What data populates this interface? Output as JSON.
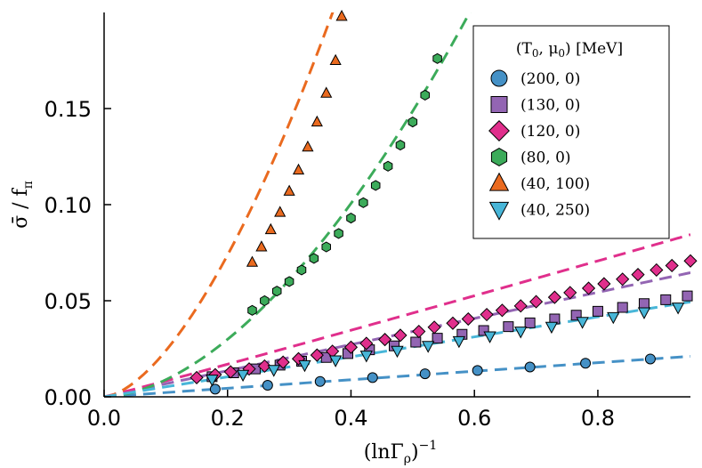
{
  "chart_data": {
    "type": "scatter",
    "title": "",
    "xlabel": "(lnΓ_ρ)^-1",
    "ylabel": "σ̄ / f_π",
    "xlim": [
      0.0,
      0.95
    ],
    "ylim": [
      0.0,
      0.2
    ],
    "xticks": [
      0.0,
      0.2,
      0.4,
      0.6,
      0.8
    ],
    "xtick_labels": [
      "0.0",
      "0.2",
      "0.4",
      "0.6",
      "0.8"
    ],
    "yticks": [
      0.0,
      0.05,
      0.1,
      0.15
    ],
    "ytick_labels": [
      "0.00",
      "0.05",
      "0.10",
      "0.15"
    ],
    "grid": false,
    "legend": {
      "position": "top-right",
      "title": "(T_0, μ_0) [MeV]",
      "entries": [
        "(200, 0)",
        "(130, 0)",
        "(120, 0)",
        "(80, 0)",
        "(40, 100)",
        "(40, 250)"
      ]
    },
    "series": [
      {
        "name": "(200, 0)",
        "marker": "circle",
        "color": "#4591c6",
        "x": [
          0.18,
          0.265,
          0.35,
          0.435,
          0.52,
          0.605,
          0.69,
          0.78,
          0.885
        ],
        "y": [
          0.004,
          0.006,
          0.008,
          0.01,
          0.012,
          0.0137,
          0.0155,
          0.0175,
          0.0197
        ],
        "fit_slope": 0.0222,
        "fit_power": 1.0
      },
      {
        "name": "(130, 0)",
        "marker": "square",
        "color": "#9365b3",
        "x": [
          0.175,
          0.21,
          0.245,
          0.285,
          0.32,
          0.36,
          0.395,
          0.43,
          0.47,
          0.505,
          0.54,
          0.58,
          0.615,
          0.655,
          0.69,
          0.73,
          0.765,
          0.8,
          0.84,
          0.875,
          0.91,
          0.945
        ],
        "y": [
          0.0105,
          0.0125,
          0.0145,
          0.0165,
          0.0185,
          0.0205,
          0.0225,
          0.0245,
          0.0265,
          0.0285,
          0.0305,
          0.0325,
          0.0345,
          0.0365,
          0.0385,
          0.0405,
          0.0425,
          0.0445,
          0.0465,
          0.0485,
          0.0505,
          0.0525
        ],
        "fit_slope": 0.068,
        "fit_power": 1.0
      },
      {
        "name": "(120, 0)",
        "marker": "diamond",
        "color": "#e02f8c",
        "x": [
          0.15,
          0.18,
          0.205,
          0.235,
          0.26,
          0.29,
          0.315,
          0.345,
          0.37,
          0.4,
          0.425,
          0.455,
          0.48,
          0.51,
          0.535,
          0.565,
          0.59,
          0.62,
          0.645,
          0.675,
          0.7,
          0.73,
          0.755,
          0.785,
          0.81,
          0.84,
          0.865,
          0.895,
          0.92,
          0.95
        ],
        "y": [
          0.01,
          0.0115,
          0.013,
          0.0145,
          0.016,
          0.018,
          0.0198,
          0.0217,
          0.0237,
          0.0258,
          0.0278,
          0.0298,
          0.032,
          0.034,
          0.0362,
          0.0383,
          0.0405,
          0.0428,
          0.045,
          0.0473,
          0.0495,
          0.0518,
          0.0542,
          0.0565,
          0.0588,
          0.0612,
          0.0636,
          0.066,
          0.0683,
          0.0707
        ],
        "fit_slope": 0.089,
        "fit_power": 1.03
      },
      {
        "name": "(80, 0)",
        "marker": "hexagon",
        "color": "#3cab5a",
        "x": [
          0.24,
          0.26,
          0.28,
          0.3,
          0.32,
          0.34,
          0.36,
          0.38,
          0.4,
          0.42,
          0.44,
          0.46,
          0.48,
          0.5,
          0.52,
          0.54
        ],
        "y": [
          0.045,
          0.05,
          0.055,
          0.06,
          0.066,
          0.072,
          0.078,
          0.085,
          0.093,
          0.101,
          0.11,
          0.12,
          0.131,
          0.143,
          0.157,
          0.176
        ],
        "fit_slope": 0.5,
        "fit_power": 1.75
      },
      {
        "name": "(40, 100)",
        "marker": "triangle-up",
        "color": "#ea6a1f",
        "x": [
          0.24,
          0.255,
          0.27,
          0.285,
          0.3,
          0.315,
          0.33,
          0.345,
          0.36,
          0.375,
          0.385
        ],
        "y": [
          0.07,
          0.078,
          0.087,
          0.096,
          0.107,
          0.118,
          0.13,
          0.143,
          0.158,
          0.175,
          0.198
        ],
        "fit_slope": 1.0,
        "fit_power": 1.62
      },
      {
        "name": "(40, 250)",
        "marker": "triangle-down",
        "color": "#48b6d8",
        "x": [
          0.175,
          0.225,
          0.275,
          0.325,
          0.375,
          0.425,
          0.475,
          0.525,
          0.575,
          0.625,
          0.675,
          0.725,
          0.775,
          0.825,
          0.875,
          0.93
        ],
        "y": [
          0.009,
          0.0115,
          0.014,
          0.0165,
          0.019,
          0.0215,
          0.024,
          0.0265,
          0.029,
          0.0315,
          0.034,
          0.0365,
          0.039,
          0.0415,
          0.044,
          0.0465
        ],
        "fit_slope": 0.052,
        "fit_power": 1.0
      }
    ]
  }
}
